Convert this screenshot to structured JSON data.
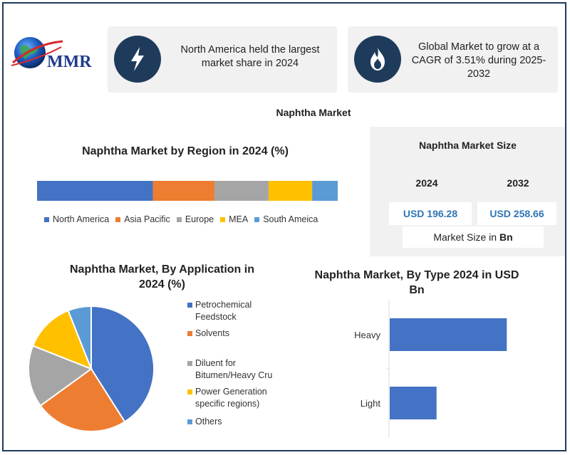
{
  "logo": {
    "text": "MMR",
    "icon": "globe-logo"
  },
  "cards": [
    {
      "icon": "lightning-icon",
      "text": "North America held the largest market share in 2024"
    },
    {
      "icon": "flame-icon",
      "text": "Global Market to grow at a CAGR of 3.51% during 2025-2032"
    }
  ],
  "main_title": "Naphtha Market",
  "market_size": {
    "title": "Naphtha Market Size",
    "years": [
      "2024",
      "2032"
    ],
    "values": [
      "USD 196.28",
      "USD 258.66"
    ],
    "footer_prefix": "Market Size in ",
    "footer_unit": "Bn"
  },
  "colors": {
    "blue": "#4472c4",
    "orange": "#ed7d31",
    "gray": "#a5a5a5",
    "yellow": "#ffc000",
    "lightblue": "#5b9bd5",
    "navy": "#1f3b5c"
  },
  "chart_data": [
    {
      "type": "bar",
      "orientation": "stacked-horizontal-100",
      "title": "Naphtha Market by Region in 2024 (%)",
      "categories": [
        "North America",
        "Asia Pacific",
        "Europe",
        "MEA",
        "South Ameica"
      ],
      "values": [
        38.5,
        20.5,
        18,
        14.5,
        8.5
      ],
      "colors": [
        "#4472c4",
        "#ed7d31",
        "#a5a5a5",
        "#ffc000",
        "#5b9bd5"
      ],
      "legend": "bottom"
    },
    {
      "type": "pie",
      "title": "Naphtha Market, By Application in 2024 (%)",
      "categories": [
        "Petrochemical Feedstock",
        "Solvents",
        "Diluent for Bitumen/Heavy Cru",
        "Power Generation specific regions)",
        "Others"
      ],
      "legend_lines": [
        [
          "Petrochemical",
          "Feedstock"
        ],
        [
          "Solvents"
        ],
        [
          "Diluent for",
          "Bitumen/Heavy Cru"
        ],
        [
          "Power Generation",
          "specific regions)"
        ],
        [
          "Others"
        ]
      ],
      "values": [
        41,
        24,
        16,
        13,
        6
      ],
      "colors": [
        "#4472c4",
        "#ed7d31",
        "#a5a5a5",
        "#ffc000",
        "#5b9bd5"
      ],
      "legend": "right"
    },
    {
      "type": "bar",
      "orientation": "horizontal",
      "title": "Naphtha Market, By Type 2024 in USD Bn",
      "categories": [
        "Heavy",
        "Light"
      ],
      "values": [
        125,
        50
      ],
      "xlim": [
        0,
        175
      ],
      "color": "#4472c4"
    }
  ]
}
